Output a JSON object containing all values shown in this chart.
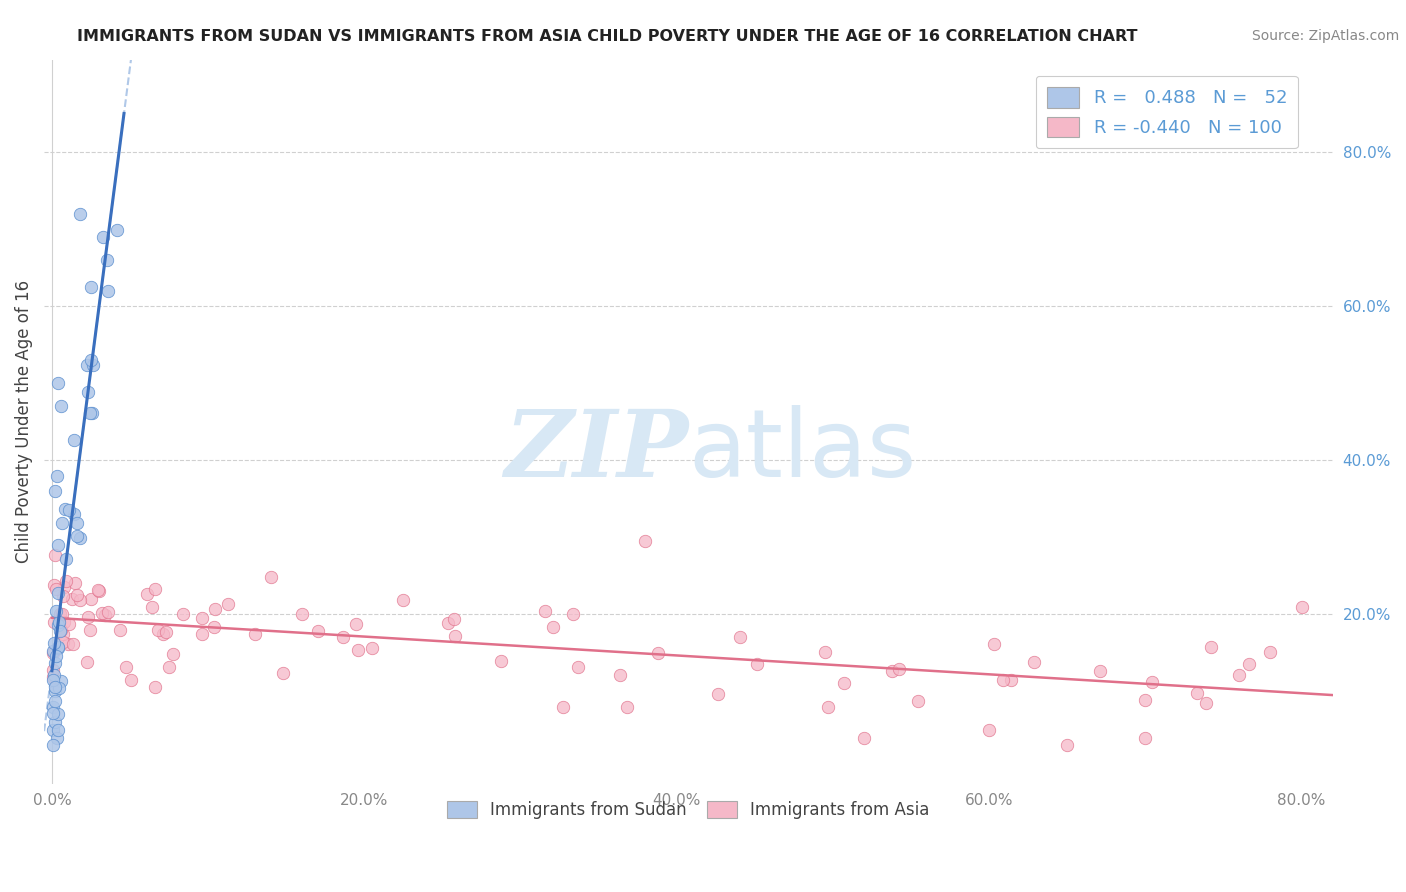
{
  "title": "IMMIGRANTS FROM SUDAN VS IMMIGRANTS FROM ASIA CHILD POVERTY UNDER THE AGE OF 16 CORRELATION CHART",
  "source": "Source: ZipAtlas.com",
  "ylabel": "Child Poverty Under the Age of 16",
  "xlim": [
    -0.005,
    0.82
  ],
  "ylim": [
    -0.02,
    0.92
  ],
  "x_tick_vals": [
    0.0,
    0.2,
    0.4,
    0.6,
    0.8
  ],
  "x_tick_labels": [
    "0.0%",
    "20.0%",
    "40.0%",
    "60.0%",
    "80.0%"
  ],
  "y_tick_right_vals": [
    0.2,
    0.4,
    0.6,
    0.8
  ],
  "y_tick_right_labels": [
    "20.0%",
    "40.0%",
    "60.0%",
    "80.0%"
  ],
  "legend_sudan_label": "Immigrants from Sudan",
  "legend_asia_label": "Immigrants from Asia",
  "sudan_R": "0.488",
  "sudan_N": "52",
  "asia_R": "-0.440",
  "asia_N": "100",
  "sudan_dot_fill": "#aec6e8",
  "sudan_dot_edge": "#5b8fcf",
  "sudan_line_color": "#3a6fbe",
  "sudan_dash_color": "#b0c8e8",
  "asia_dot_fill": "#f5b8c8",
  "asia_dot_edge": "#e0708a",
  "asia_line_color": "#e0708a",
  "watermark_color": "#d8e8f5",
  "grid_color": "#d0d0d0",
  "right_tick_color": "#5b9bd5",
  "title_color": "#222222",
  "source_color": "#888888",
  "ylabel_color": "#444444"
}
